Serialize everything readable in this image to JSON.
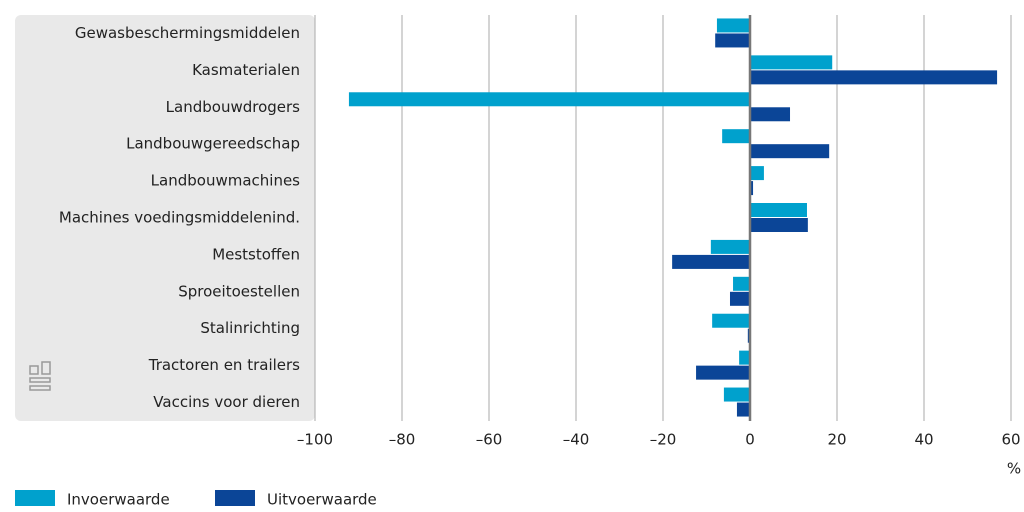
{
  "chart_data": {
    "type": "bar",
    "orientation": "horizontal",
    "categories": [
      "Gewasbeschermingsmiddelen",
      "Kasmaterialen",
      "Landbouwdrogers",
      "Landbouwgereedschap",
      "Landbouwmachines",
      "Machines voedingsmiddelenind.",
      "Meststoffen",
      "Sproeitoestellen",
      "Stalinrichting",
      "Tractoren en trailers",
      "Vaccins voor dieren"
    ],
    "series": [
      {
        "name": "Invoerwaarde",
        "color": "#00a1cd",
        "values": [
          -7.6,
          18.9,
          -92.2,
          -6.4,
          3.2,
          13.1,
          -9,
          -3.9,
          -8.7,
          -2.5,
          -6
        ]
      },
      {
        "name": "Uitvoerwaarde",
        "color": "#0b4597",
        "values": [
          -8,
          56.8,
          9.2,
          18.2,
          0.7,
          13.3,
          -17.9,
          -4.6,
          -0.5,
          -12.4,
          -3
        ]
      }
    ],
    "xlim": [
      -100,
      60
    ],
    "xticks": [
      {
        "value": -100,
        "label": "–100"
      },
      {
        "value": -80,
        "label": "–80"
      },
      {
        "value": -60,
        "label": "–60"
      },
      {
        "value": -40,
        "label": "–40"
      },
      {
        "value": -20,
        "label": "–20"
      },
      0,
      20,
      40,
      60
    ],
    "xlabel": "%",
    "grid": true,
    "legend": "bottom-left"
  }
}
